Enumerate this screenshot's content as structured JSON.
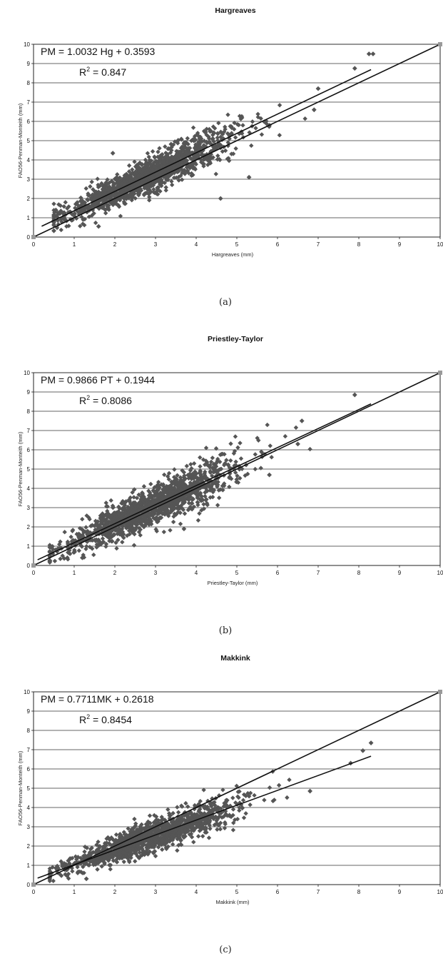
{
  "chart_data": [
    {
      "type": "scatter",
      "title": "Hargreaves",
      "xlabel": "Hargreaves (mm)",
      "ylabel": "FAO56-Penman-Monteith (mm)",
      "xlim": [
        0,
        10
      ],
      "ylim": [
        0,
        10
      ],
      "xticks": [
        "0",
        "1",
        "2",
        "3",
        "4",
        "5",
        "6",
        "7",
        "8",
        "9",
        "10"
      ],
      "yticks": [
        "0",
        "1",
        "2",
        "3",
        "4",
        "5",
        "6",
        "7",
        "8",
        "9",
        "10"
      ],
      "grid": "horizontal",
      "equation": "PM = 1.0032 Hg + 0.3593",
      "r2_label": "R",
      "r2_sup": "2",
      "r2_value": " = 0.847",
      "caption": "(a)",
      "regression": {
        "slope": 1.0032,
        "intercept": 0.3593,
        "x_range": [
          0.2,
          8.3
        ]
      },
      "one_to_one": {
        "x_range": [
          0,
          10
        ]
      },
      "scatter": {
        "x_range": [
          0.5,
          7.0
        ],
        "slope": 1.0032,
        "intercept": 0.3593,
        "spread": 0.55,
        "count": 1400,
        "color": "#555555"
      },
      "points": [
        [
          8.25,
          9.5
        ],
        [
          8.35,
          9.5
        ],
        [
          7.9,
          8.75
        ],
        [
          1.95,
          4.35
        ],
        [
          7.0,
          7.7
        ],
        [
          1.6,
          0.55
        ],
        [
          0.55,
          1.4
        ],
        [
          6.9,
          6.6
        ],
        [
          5.3,
          3.1
        ],
        [
          4.6,
          2.0
        ]
      ],
      "marker_color": "#555555",
      "line_color": "#111111"
    },
    {
      "type": "scatter",
      "title": "Priestley-Taylor",
      "xlabel": "Priestley-Taylor (mm)",
      "ylabel": "FAO56-Penman-Monteith (mm)",
      "xlim": [
        0,
        10
      ],
      "ylim": [
        0,
        10
      ],
      "xticks": [
        "0",
        "1",
        "2",
        "3",
        "4",
        "5",
        "6",
        "7",
        "8",
        "9",
        "10"
      ],
      "yticks": [
        "0",
        "1",
        "2",
        "3",
        "4",
        "5",
        "6",
        "7",
        "8",
        "9",
        "10"
      ],
      "grid": "horizontal",
      "equation": "PM = 0.9866 PT + 0.1944",
      "r2_label": "R",
      "r2_sup": "2",
      "r2_value": " = 0.8086",
      "caption": "(b)",
      "regression": {
        "slope": 0.9866,
        "intercept": 0.1944,
        "x_range": [
          0.1,
          8.3
        ]
      },
      "one_to_one": {
        "x_range": [
          0,
          10
        ]
      },
      "scatter": {
        "x_range": [
          0.4,
          6.8
        ],
        "slope": 0.9866,
        "intercept": 0.1944,
        "spread": 0.6,
        "count": 1500,
        "color": "#555555"
      },
      "points": [
        [
          7.9,
          8.85
        ],
        [
          6.6,
          7.5
        ],
        [
          6.5,
          6.3
        ],
        [
          1.2,
          0.4
        ],
        [
          3.7,
          1.9
        ],
        [
          5.8,
          4.7
        ]
      ],
      "marker_color": "#555555",
      "line_color": "#111111"
    },
    {
      "type": "scatter",
      "title": "Makkink",
      "xlabel": "Makkink (mm)",
      "ylabel": "FAO56-Penman-Monteith (mm)",
      "xlim": [
        0,
        10
      ],
      "ylim": [
        0,
        10
      ],
      "xticks": [
        "0",
        "1",
        "2",
        "3",
        "4",
        "5",
        "6",
        "7",
        "8",
        "9",
        "10"
      ],
      "yticks": [
        "0",
        "1",
        "2",
        "3",
        "4",
        "5",
        "6",
        "7",
        "8",
        "9",
        "10"
      ],
      "grid": "horizontal",
      "equation": "PM = 0.7711MK + 0.2618",
      "r2_label": "R",
      "r2_sup": "2",
      "r2_value": " = 0.8454",
      "caption": "(c)",
      "regression": {
        "slope": 0.7711,
        "intercept": 0.2618,
        "x_range": [
          0.1,
          8.3
        ]
      },
      "one_to_one": {
        "x_range": [
          0,
          10
        ]
      },
      "scatter": {
        "x_range": [
          0.4,
          6.5
        ],
        "slope": 0.7711,
        "intercept": 0.2618,
        "spread": 0.45,
        "count": 1400,
        "color": "#555555"
      },
      "points": [
        [
          8.3,
          7.35
        ],
        [
          8.1,
          6.95
        ],
        [
          7.8,
          6.3
        ],
        [
          6.8,
          4.85
        ],
        [
          1.3,
          0.3
        ],
        [
          0.8,
          1.05
        ]
      ],
      "marker_color": "#555555",
      "line_color": "#111111"
    }
  ]
}
